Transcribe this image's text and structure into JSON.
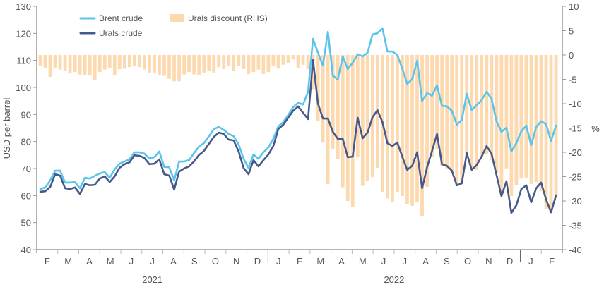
{
  "chart_data": {
    "type": "line+bar",
    "title": "",
    "ylabel": "USD per barrel",
    "y2label": "%",
    "ylim": [
      40,
      130
    ],
    "y2lim": [
      -40,
      10
    ],
    "yticks": [
      "40",
      "50",
      "60",
      "70",
      "80",
      "90",
      "100",
      "110",
      "120",
      "130"
    ],
    "y2ticks": [
      "-40",
      "-35",
      "-30",
      "-25",
      "-20",
      "-15",
      "-10",
      "-5",
      "0",
      "5",
      "10"
    ],
    "grid": false,
    "legend_position": "top-left",
    "legend": [
      {
        "name": "Brent crude",
        "kind": "line",
        "color": "#5bc4ea"
      },
      {
        "name": "Urals crude",
        "kind": "line",
        "color": "#465a8a"
      },
      {
        "name": "Urals discount (RHS)",
        "kind": "bar",
        "color": "#fdd9b0"
      }
    ],
    "x_month_labels": [
      "F",
      "M",
      "A",
      "M",
      "J",
      "J",
      "A",
      "S",
      "O",
      "N",
      "D",
      "J",
      "F",
      "M",
      "A",
      "M",
      "J",
      "J",
      "A",
      "S",
      "O",
      "N",
      "D",
      "J",
      "F"
    ],
    "x_year_labels": [
      {
        "label": "2021",
        "span_months": [
          0,
          10
        ]
      },
      {
        "label": "2022",
        "span_months": [
          11,
          22
        ]
      }
    ],
    "frequency": "weekly",
    "x_start_month_index": -0.35,
    "weeks_per_month": 4.345,
    "series": [
      {
        "name": "Brent crude",
        "axis": "left",
        "values": [
          62.4,
          63.0,
          65.6,
          69.2,
          69.2,
          64.8,
          64.8,
          65.0,
          62.7,
          66.6,
          66.3,
          67.3,
          68.2,
          68.7,
          66.6,
          69.7,
          71.8,
          72.6,
          73.4,
          76.0,
          76.0,
          75.5,
          73.7,
          74.2,
          76.3,
          70.6,
          70.5,
          65.6,
          72.6,
          72.6,
          73.1,
          75.7,
          78.1,
          79.4,
          81.9,
          84.6,
          85.4,
          84.3,
          82.8,
          82.0,
          78.9,
          73.6,
          70.2,
          75.2,
          73.6,
          76.0,
          77.8,
          81.0,
          85.6,
          87.2,
          89.8,
          92.7,
          94.3,
          93.7,
          98.4,
          118.0,
          112.8,
          108.1,
          120.6,
          104.4,
          102.9,
          111.5,
          106.8,
          109.1,
          112.3,
          111.5,
          112.8,
          119.6,
          120.1,
          121.9,
          113.3,
          113.3,
          112.0,
          107.0,
          101.3,
          103.1,
          109.9,
          95.0,
          97.9,
          96.9,
          100.8,
          93.2,
          93.0,
          91.4,
          86.2,
          88.0,
          97.6,
          91.6,
          93.5,
          95.3,
          98.4,
          95.8,
          87.5,
          83.6,
          85.1,
          76.3,
          79.4,
          83.8,
          85.9,
          78.6,
          85.4,
          87.5,
          86.4,
          80.2,
          85.9
        ]
      },
      {
        "name": "Urals crude",
        "axis": "left",
        "values": [
          61.4,
          61.6,
          63.2,
          67.9,
          67.4,
          62.7,
          62.4,
          63.0,
          60.6,
          64.3,
          63.8,
          64.0,
          66.3,
          67.1,
          65.0,
          67.1,
          70.3,
          71.6,
          72.3,
          74.9,
          74.7,
          73.9,
          71.6,
          71.8,
          73.4,
          67.9,
          67.4,
          62.2,
          68.9,
          70.0,
          70.8,
          72.6,
          75.0,
          76.5,
          79.1,
          81.7,
          83.3,
          82.8,
          80.7,
          80.4,
          76.3,
          70.2,
          67.9,
          73.1,
          70.8,
          73.1,
          75.2,
          78.3,
          84.6,
          86.2,
          88.8,
          91.4,
          93.0,
          90.6,
          88.3,
          110.2,
          94.0,
          88.5,
          88.5,
          83.6,
          81.0,
          81.0,
          74.2,
          74.4,
          88.8,
          81.2,
          83.3,
          89.0,
          91.6,
          87.2,
          79.4,
          78.3,
          79.6,
          74.4,
          69.5,
          71.0,
          76.0,
          62.7,
          70.5,
          76.5,
          82.8,
          71.6,
          71.0,
          69.2,
          63.8,
          64.5,
          75.7,
          69.5,
          71.3,
          74.4,
          78.3,
          75.5,
          67.6,
          59.8,
          65.3,
          53.6,
          56.4,
          62.4,
          63.8,
          57.5,
          62.7,
          64.8,
          58.5,
          53.8,
          60.1
        ]
      },
      {
        "name": "Urals discount (RHS)",
        "axis": "right",
        "values": [
          -2.2,
          -2.6,
          -4.5,
          -2.6,
          -3.0,
          -3.2,
          -3.8,
          -3.5,
          -4.0,
          -4.2,
          -4.2,
          -5.2,
          -3.5,
          -3.0,
          -2.6,
          -4.2,
          -2.9,
          -2.8,
          -2.5,
          -2.2,
          -2.5,
          -3.0,
          -3.6,
          -3.6,
          -4.2,
          -4.3,
          -4.9,
          -5.4,
          -5.4,
          -4.0,
          -3.5,
          -4.0,
          -4.2,
          -3.6,
          -3.3,
          -3.6,
          -2.5,
          -2.9,
          -2.3,
          -3.3,
          -2.3,
          -2.9,
          -3.9,
          -3.5,
          -3.0,
          -3.9,
          -3.5,
          -2.3,
          -2.8,
          -2.0,
          -1.7,
          -0.9,
          -2.6,
          -2.0,
          -2.9,
          -7.0,
          -13.6,
          -18.0,
          -26.5,
          -19.4,
          -21.4,
          -27.2,
          -30.0,
          -31.3,
          -21.0,
          -26.9,
          -25.8,
          -25.1,
          -23.2,
          -28.1,
          -29.5,
          -30.3,
          -28.1,
          -29.0,
          -30.7,
          -31.0,
          -30.3,
          -33.2,
          -27.1,
          -20.9,
          -19.4,
          -22.8,
          -23.3,
          -24.1,
          -26.7,
          -26.5,
          -20.9,
          -23.3,
          -23.6,
          -20.9,
          -20.3,
          -21.6,
          -24.4,
          -28.7,
          -23.3,
          -29.0,
          -26.7,
          -25.4,
          -25.2,
          -26.5,
          -26.1,
          -28.0,
          -31.6,
          -32.2,
          -28.7
        ]
      }
    ]
  }
}
